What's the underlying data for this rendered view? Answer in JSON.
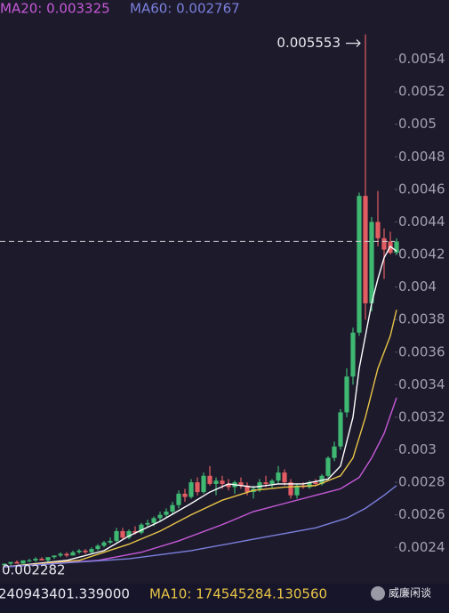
{
  "chart_data": {
    "type": "candlestick",
    "ma20_text": "MA20: 0.003325",
    "ma60_text": "MA60: 0.002767",
    "volume_text": "240943401.339000",
    "volume_ma10_text": "MA10: 174545284.130560",
    "watermark": "威廉闲谈",
    "max_label": 0.005553,
    "min_label": 0.002282,
    "up_color": "#3fb872",
    "down_color": "#e25d62",
    "ylim": [
      0.00221,
      0.0056
    ],
    "yticks": [
      0.0024,
      0.0026,
      0.0028,
      0.003,
      0.0032,
      0.0034,
      0.0036,
      0.0038,
      0.004,
      0.0042,
      0.0044,
      0.0046,
      0.0048,
      0.005,
      0.0052,
      0.0054
    ],
    "open": [
      0.00229,
      0.0023,
      0.00231,
      0.0023,
      0.00232,
      0.00232,
      0.00233,
      0.00232,
      0.00234,
      0.00235,
      0.00236,
      0.00235,
      0.00237,
      0.00238,
      0.00237,
      0.00239,
      0.00241,
      0.00243,
      0.00244,
      0.0025,
      0.00246,
      0.0025,
      0.00249,
      0.00254,
      0.00255,
      0.00258,
      0.0026,
      0.00262,
      0.00266,
      0.00273,
      0.00271,
      0.0028,
      0.00274,
      0.00284,
      0.00279,
      0.00281,
      0.00279,
      0.00277,
      0.0028,
      0.00278,
      0.00274,
      0.00276,
      0.0028,
      0.00279,
      0.00281,
      0.00286,
      0.0028,
      0.00272,
      0.00278,
      0.00277,
      0.0028,
      0.00279,
      0.00284,
      0.00295,
      0.00302,
      0.00323,
      0.00345,
      0.00372,
      0.00456,
      0.0039,
      0.0044,
      0.0043,
      0.00428,
      0.00421
    ],
    "high": [
      0.0023,
      0.00231,
      0.00232,
      0.00232,
      0.00233,
      0.00234,
      0.00234,
      0.00234,
      0.00235,
      0.00237,
      0.00237,
      0.00238,
      0.00239,
      0.00239,
      0.0024,
      0.00242,
      0.00244,
      0.00246,
      0.00252,
      0.00252,
      0.00251,
      0.00253,
      0.00255,
      0.00257,
      0.00259,
      0.00262,
      0.00264,
      0.00268,
      0.00275,
      0.00276,
      0.00282,
      0.00283,
      0.00286,
      0.0029,
      0.00283,
      0.00284,
      0.00282,
      0.00281,
      0.00283,
      0.0028,
      0.00278,
      0.00282,
      0.00284,
      0.00282,
      0.0029,
      0.00288,
      0.00282,
      0.00279,
      0.0028,
      0.00281,
      0.00282,
      0.00285,
      0.00296,
      0.00305,
      0.00325,
      0.0035,
      0.00375,
      0.00458,
      0.005553,
      0.00443,
      0.00459,
      0.00436,
      0.00434,
      0.0043
    ],
    "low": [
      0.002282,
      0.00229,
      0.0023,
      0.0023,
      0.00231,
      0.00231,
      0.00232,
      0.00231,
      0.00233,
      0.00234,
      0.00234,
      0.00235,
      0.00236,
      0.00236,
      0.00236,
      0.00238,
      0.0024,
      0.00242,
      0.00243,
      0.00245,
      0.00245,
      0.00248,
      0.00248,
      0.00252,
      0.00253,
      0.00256,
      0.00258,
      0.0026,
      0.00264,
      0.00268,
      0.0027,
      0.00272,
      0.00273,
      0.00278,
      0.00272,
      0.00276,
      0.00275,
      0.00273,
      0.00276,
      0.00272,
      0.0027,
      0.00274,
      0.00277,
      0.00276,
      0.00279,
      0.00278,
      0.0027,
      0.0027,
      0.00276,
      0.00276,
      0.00278,
      0.00278,
      0.00283,
      0.00293,
      0.003,
      0.0032,
      0.0034,
      0.0037,
      0.0038,
      0.00385,
      0.00425,
      0.00405,
      0.0042,
      0.0042
    ],
    "close": [
      0.0023,
      0.00231,
      0.0023,
      0.00232,
      0.00232,
      0.00233,
      0.00232,
      0.00234,
      0.00235,
      0.00236,
      0.00235,
      0.00237,
      0.00238,
      0.00237,
      0.00239,
      0.00241,
      0.00243,
      0.00244,
      0.0025,
      0.00246,
      0.0025,
      0.00249,
      0.00254,
      0.00255,
      0.00258,
      0.0026,
      0.00262,
      0.00266,
      0.00273,
      0.00271,
      0.0028,
      0.00274,
      0.00284,
      0.00279,
      0.00281,
      0.00279,
      0.00277,
      0.0028,
      0.00278,
      0.00274,
      0.00276,
      0.0028,
      0.00279,
      0.00281,
      0.00286,
      0.0028,
      0.00272,
      0.00278,
      0.00277,
      0.0028,
      0.00279,
      0.00284,
      0.00295,
      0.00302,
      0.00323,
      0.00345,
      0.00372,
      0.00456,
      0.0039,
      0.0044,
      0.0043,
      0.00423,
      0.00421,
      0.00428
    ],
    "lines": [
      {
        "color": "#ffffff",
        "x": [
          0,
          10,
          16,
          20,
          25,
          30,
          33,
          36,
          40,
          44,
          48,
          52,
          54,
          56,
          57,
          58,
          59,
          60,
          61,
          62,
          63
        ],
        "values": [
          0.00228,
          0.00232,
          0.00238,
          0.00247,
          0.00256,
          0.00267,
          0.00274,
          0.00279,
          0.00277,
          0.00279,
          0.00279,
          0.00282,
          0.0029,
          0.0032,
          0.0035,
          0.0037,
          0.0039,
          0.00405,
          0.00418,
          0.00425,
          0.00422
        ]
      },
      {
        "color": "#e8c547",
        "x": [
          0,
          12,
          20,
          25,
          30,
          35,
          40,
          45,
          50,
          54,
          56,
          58,
          60,
          62,
          63
        ],
        "values": [
          0.00228,
          0.00232,
          0.00242,
          0.0025,
          0.0026,
          0.00269,
          0.00275,
          0.00277,
          0.00278,
          0.00284,
          0.00295,
          0.0032,
          0.0035,
          0.0037,
          0.00386
        ]
      },
      {
        "color": "#c65ad8",
        "x": [
          0,
          15,
          22,
          28,
          35,
          40,
          45,
          50,
          54,
          57,
          59,
          61,
          63
        ],
        "values": [
          0.00228,
          0.00232,
          0.00237,
          0.00244,
          0.00254,
          0.00262,
          0.00267,
          0.00272,
          0.00276,
          0.00283,
          0.00295,
          0.0031,
          0.00332
        ]
      },
      {
        "color": "#7b80dd",
        "x": [
          0,
          20,
          30,
          40,
          50,
          55,
          58,
          61,
          63
        ],
        "values": [
          0.00228,
          0.00233,
          0.00238,
          0.00245,
          0.00252,
          0.00258,
          0.00264,
          0.00272,
          0.00278
        ]
      }
    ]
  }
}
